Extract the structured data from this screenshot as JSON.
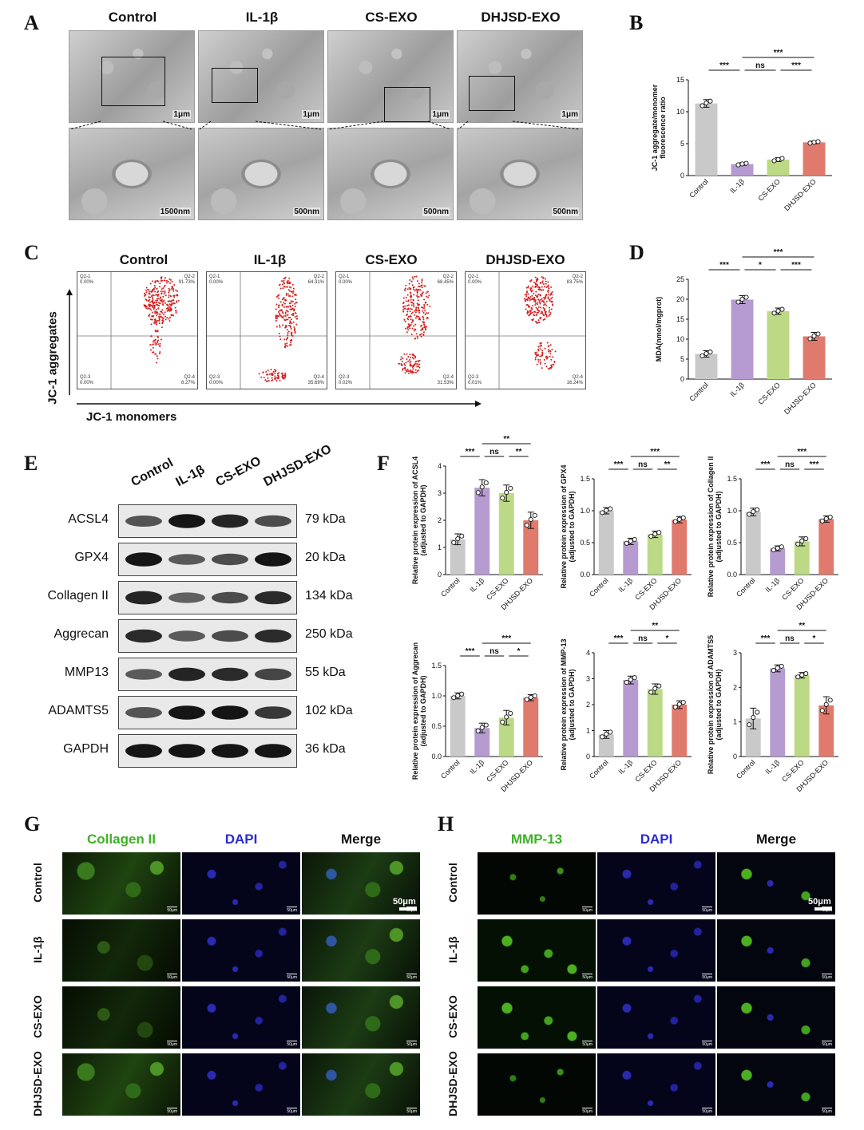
{
  "panels": {
    "A": "A",
    "B": "B",
    "C": "C",
    "D": "D",
    "E": "E",
    "F": "F",
    "G": "G",
    "H": "H"
  },
  "groups": [
    "Control",
    "IL-1β",
    "CS-EXO",
    "DHJSD-EXO"
  ],
  "colors": {
    "control": "#c9c9c9",
    "il1b": "#b59bd0",
    "csexo": "#bcd985",
    "dhjsd": "#e07a6d"
  },
  "panel_a": {
    "top_scale": [
      "1μm",
      "1μm",
      "1μm",
      "1μm"
    ],
    "bottom_scale": [
      "1500nm",
      "500nm",
      "500nm",
      "500nm"
    ]
  },
  "panel_c": {
    "ylabel": "JC-1 aggregates",
    "xlabel": "JC-1 monomers",
    "plots": [
      {
        "q1": "Q2-1",
        "q1v": "0.00%",
        "q2": "Q2-2",
        "q2v": "91.73%",
        "q3": "Q2-3",
        "q3v": "0.00%",
        "q4": "Q2-4",
        "q4v": "8.27%"
      },
      {
        "q1": "Q2-1",
        "q1v": "0.00%",
        "q2": "Q2-2",
        "q2v": "64.31%",
        "q3": "Q2-3",
        "q3v": "0.00%",
        "q4": "Q2-4",
        "q4v": "35.69%"
      },
      {
        "q1": "Q2-1",
        "q1v": "0.00%",
        "q2": "Q2-2",
        "q2v": "68.45%",
        "q3": "Q2-3",
        "q3v": "0.02%",
        "q4": "Q2-4",
        "q4v": "31.53%"
      },
      {
        "q1": "Q2-1",
        "q1v": "0.00%",
        "q2": "Q2-2",
        "q2v": "83.75%",
        "q3": "Q2-3",
        "q3v": "0.01%",
        "q4": "Q2-4",
        "q4v": "16.24%"
      }
    ]
  },
  "panel_e": {
    "proteins": [
      {
        "name": "ACSL4",
        "kda": "79 kDa"
      },
      {
        "name": "GPX4",
        "kda": "20 kDa"
      },
      {
        "name": "Collagen II",
        "kda": "134 kDa"
      },
      {
        "name": "Aggrecan",
        "kda": "250 kDa"
      },
      {
        "name": "MMP13",
        "kda": "55 kDa"
      },
      {
        "name": "ADAMTS5",
        "kda": "102 kDa"
      },
      {
        "name": "GAPDH",
        "kda": "36 kDa"
      }
    ]
  },
  "panel_g": {
    "cols": [
      "Collagen II",
      "DAPI",
      "Merge"
    ],
    "scale": "50μm",
    "tile_scale": "50μm"
  },
  "panel_h": {
    "cols": [
      "MMP-13",
      "DAPI",
      "Merge"
    ],
    "scale": "50μm",
    "tile_scale": "50μm"
  },
  "chart_data": [
    {
      "id": "B",
      "type": "bar",
      "categories": [
        "Control",
        "IL-1β",
        "CS-EXO",
        "DHJSD-EXO"
      ],
      "values": [
        11.3,
        1.8,
        2.5,
        5.2
      ],
      "errors": [
        0.6,
        0.2,
        0.3,
        0.2
      ],
      "ylabel": "JC-1 aggregate/monomer fluorescence ratio",
      "ylim": [
        0,
        15
      ],
      "yticks": [
        0,
        5,
        10,
        15
      ],
      "sig": [
        {
          "a": 0,
          "b": 1,
          "label": "***",
          "level": 0
        },
        {
          "a": 1,
          "b": 2,
          "label": "ns",
          "level": 0
        },
        {
          "a": 2,
          "b": 3,
          "label": "***",
          "level": 0
        },
        {
          "a": 1,
          "b": 3,
          "label": "***",
          "level": 1
        }
      ]
    },
    {
      "id": "D",
      "type": "bar",
      "categories": [
        "Control",
        "IL-1β",
        "CS-EXO",
        "DHJSD-EXO"
      ],
      "values": [
        6.3,
        19.9,
        17.0,
        10.7
      ],
      "errors": [
        0.8,
        1.0,
        0.8,
        1.0
      ],
      "ylabel": "MDA(nmol/mgprot)",
      "ylim": [
        0,
        25
      ],
      "yticks": [
        0,
        5,
        10,
        15,
        20,
        25
      ],
      "sig": [
        {
          "a": 0,
          "b": 1,
          "label": "***",
          "level": 0
        },
        {
          "a": 1,
          "b": 2,
          "label": "*",
          "level": 0
        },
        {
          "a": 2,
          "b": 3,
          "label": "***",
          "level": 0
        },
        {
          "a": 1,
          "b": 3,
          "label": "***",
          "level": 1
        }
      ]
    },
    {
      "id": "F1",
      "type": "bar",
      "categories": [
        "Control",
        "IL-1β",
        "CS-EXO",
        "DHJSD-EXO"
      ],
      "values": [
        1.3,
        3.2,
        3.0,
        2.0
      ],
      "errors": [
        0.2,
        0.3,
        0.3,
        0.3
      ],
      "ylabel": "Relative protein expression of ACSL4 (adjusted to GAPDH)",
      "ylim": [
        0,
        4
      ],
      "yticks": [
        0,
        1,
        2,
        3,
        4
      ],
      "sig": [
        {
          "a": 0,
          "b": 1,
          "label": "***",
          "level": 0
        },
        {
          "a": 1,
          "b": 2,
          "label": "ns",
          "level": 0
        },
        {
          "a": 2,
          "b": 3,
          "label": "**",
          "level": 0
        },
        {
          "a": 1,
          "b": 3,
          "label": "**",
          "level": 1
        }
      ]
    },
    {
      "id": "F2",
      "type": "bar",
      "categories": [
        "Control",
        "IL-1β",
        "CS-EXO",
        "DHJSD-EXO"
      ],
      "values": [
        1.0,
        0.52,
        0.63,
        0.86
      ],
      "errors": [
        0.05,
        0.05,
        0.05,
        0.05
      ],
      "ylabel": "Relative protein expression of GPX4 (adjusted to GAPDH)",
      "ylim": [
        0,
        1.5
      ],
      "yticks": [
        0.0,
        0.5,
        1.0,
        1.5
      ],
      "sig": [
        {
          "a": 0,
          "b": 1,
          "label": "***",
          "level": 0
        },
        {
          "a": 1,
          "b": 2,
          "label": "ns",
          "level": 0
        },
        {
          "a": 2,
          "b": 3,
          "label": "**",
          "level": 0
        },
        {
          "a": 1,
          "b": 3,
          "label": "***",
          "level": 1
        }
      ]
    },
    {
      "id": "F3",
      "type": "bar",
      "categories": [
        "Control",
        "IL-1β",
        "CS-EXO",
        "DHJSD-EXO"
      ],
      "values": [
        0.98,
        0.41,
        0.52,
        0.87
      ],
      "errors": [
        0.06,
        0.04,
        0.07,
        0.05
      ],
      "ylabel": "Relative protein expression of Collagen II (adjusted to GAPDH)",
      "ylim": [
        0,
        1.5
      ],
      "yticks": [
        0.0,
        0.5,
        1.0,
        1.5
      ],
      "sig": [
        {
          "a": 0,
          "b": 1,
          "label": "***",
          "level": 0
        },
        {
          "a": 1,
          "b": 2,
          "label": "ns",
          "level": 0
        },
        {
          "a": 2,
          "b": 3,
          "label": "***",
          "level": 0
        },
        {
          "a": 1,
          "b": 3,
          "label": "***",
          "level": 1
        }
      ]
    },
    {
      "id": "F4",
      "type": "bar",
      "categories": [
        "Control",
        "IL-1β",
        "CS-EXO",
        "DHJSD-EXO"
      ],
      "values": [
        1.0,
        0.47,
        0.64,
        0.97
      ],
      "errors": [
        0.05,
        0.08,
        0.12,
        0.05
      ],
      "ylabel": "Relative protein expression of Aggrecan (adjusted to GAPDH)",
      "ylim": [
        0,
        1.5
      ],
      "yticks": [
        0.0,
        0.5,
        1.0,
        1.5
      ],
      "sig": [
        {
          "a": 0,
          "b": 1,
          "label": "***",
          "level": 0
        },
        {
          "a": 1,
          "b": 2,
          "label": "ns",
          "level": 0
        },
        {
          "a": 2,
          "b": 3,
          "label": "*",
          "level": 0
        },
        {
          "a": 1,
          "b": 3,
          "label": "***",
          "level": 1
        }
      ]
    },
    {
      "id": "F5",
      "type": "bar",
      "categories": [
        "Control",
        "IL-1β",
        "CS-EXO",
        "DHJSD-EXO"
      ],
      "values": [
        0.85,
        2.95,
        2.6,
        2.0
      ],
      "errors": [
        0.15,
        0.15,
        0.2,
        0.15
      ],
      "ylabel": "Relative protein expression of MMP-13 (adjusted to GAPDH)",
      "ylim": [
        0,
        4
      ],
      "yticks": [
        0,
        1,
        2,
        3,
        4
      ],
      "sig": [
        {
          "a": 0,
          "b": 1,
          "label": "***",
          "level": 0
        },
        {
          "a": 1,
          "b": 2,
          "label": "ns",
          "level": 0
        },
        {
          "a": 2,
          "b": 3,
          "label": "*",
          "level": 0
        },
        {
          "a": 1,
          "b": 3,
          "label": "**",
          "level": 1
        }
      ]
    },
    {
      "id": "F6",
      "type": "bar",
      "categories": [
        "Control",
        "IL-1β",
        "CS-EXO",
        "DHJSD-EXO"
      ],
      "values": [
        1.1,
        2.55,
        2.35,
        1.48
      ],
      "errors": [
        0.3,
        0.1,
        0.08,
        0.25
      ],
      "ylabel": "Relative protein expression of ADAMTS5 (adjusted to GAPDH)",
      "ylim": [
        0,
        3
      ],
      "yticks": [
        0,
        1,
        2,
        3
      ],
      "sig": [
        {
          "a": 0,
          "b": 1,
          "label": "***",
          "level": 0
        },
        {
          "a": 1,
          "b": 2,
          "label": "ns",
          "level": 0
        },
        {
          "a": 2,
          "b": 3,
          "label": "*",
          "level": 0
        },
        {
          "a": 1,
          "b": 3,
          "label": "**",
          "level": 1
        }
      ]
    }
  ]
}
